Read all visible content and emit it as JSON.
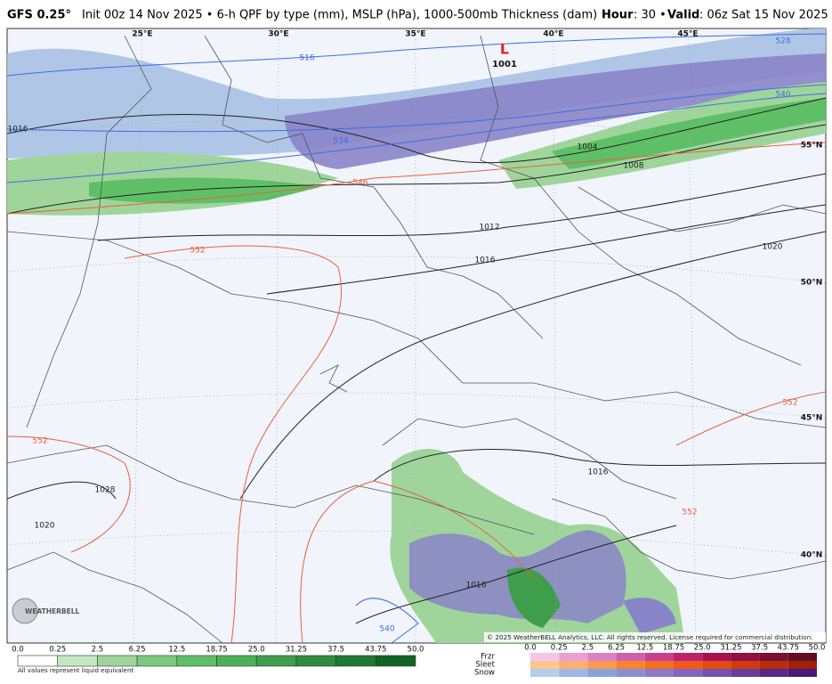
{
  "header": {
    "model": "GFS 0.25°",
    "description": "Init 00z 14 Nov 2025 • 6-h QPF by type (mm), MSLP (hPa), 1000-500mb Thickness (dam)",
    "hour_label": "Hour",
    "hour_value": ": 30 •",
    "valid_label": "Valid",
    "valid_value": ": 06z Sat 15 Nov 2025"
  },
  "map": {
    "longitude_labels": [
      "25°E",
      "30°E",
      "35°E",
      "40°E",
      "45°E"
    ],
    "latitude_labels": [
      "55°N",
      "50°N",
      "45°N",
      "40°N"
    ],
    "low_center": {
      "symbol": "L",
      "pressure": "1001"
    },
    "isobar_labels": [
      "1004",
      "1008",
      "1012",
      "1016",
      "1020",
      "1016",
      "1016",
      "1028",
      "1020",
      "1016"
    ],
    "thickness_labels": [
      "516",
      "528",
      "534",
      "540",
      "546",
      "552",
      "552",
      "552",
      "552",
      "540"
    ],
    "copyright": "© 2025 WeatherBELL Analytics, LLC. All rights reserved. License required for commercial distribution.",
    "logo": "WEATHERBELL"
  },
  "legend": {
    "rain_scale": [
      "0.0",
      "0.25",
      "2.5",
      "6.25",
      "12.5",
      "18.75",
      "25.0",
      "31.25",
      "37.5",
      "43.75",
      "50.0"
    ],
    "note": "All values represent liquid equivalent",
    "types": [
      "Frzr",
      "Sleet",
      "Snow"
    ],
    "winter_scale": [
      "0.0",
      "0.25",
      "2.5",
      "6.25",
      "12.5",
      "18.75",
      "25.0",
      "31.25",
      "37.5",
      "43.75",
      "50.0"
    ]
  }
}
